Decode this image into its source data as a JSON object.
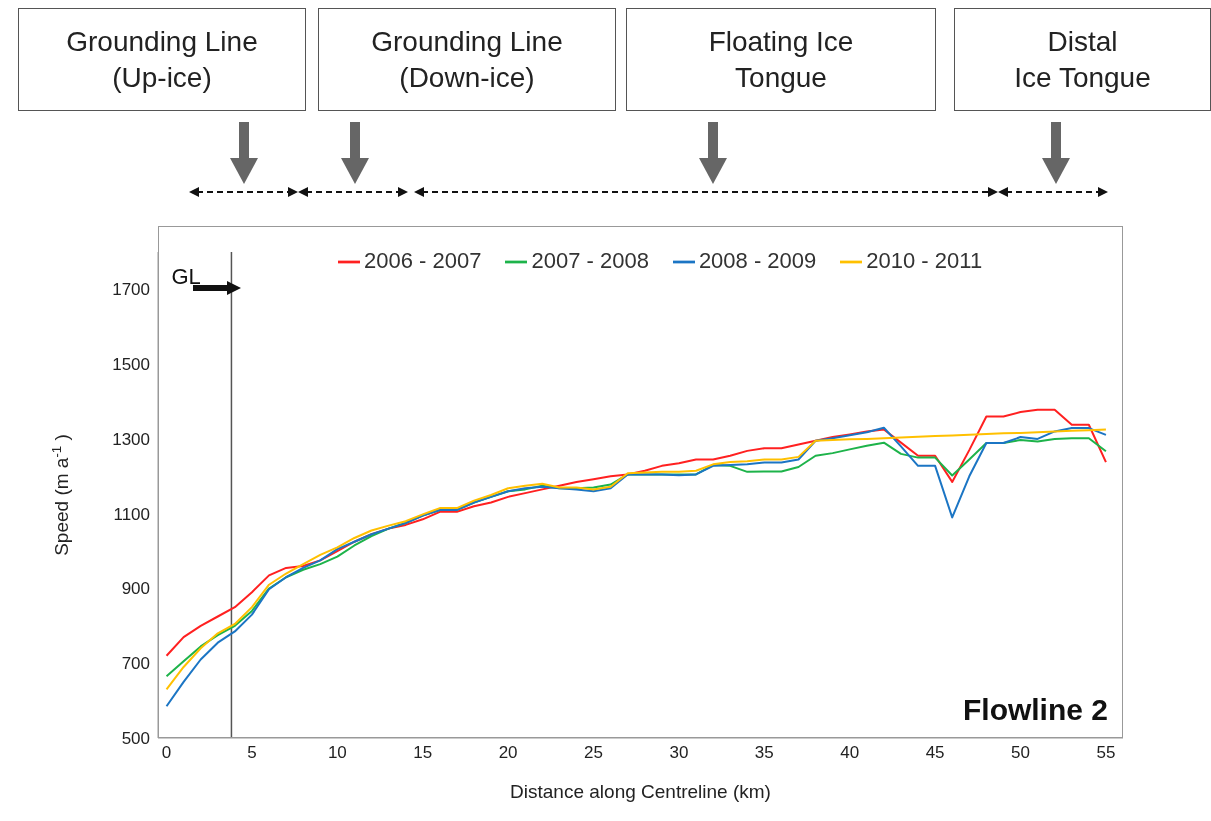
{
  "chart_data": {
    "type": "line",
    "xlabel": "Distance along Centreline (km)",
    "ylabel": "Speed (m a$^{-1}$ )",
    "x": [
      0,
      1,
      2,
      3,
      4,
      5,
      6,
      7,
      8,
      9,
      10,
      11,
      12,
      13,
      14,
      15,
      16,
      17,
      18,
      19,
      20,
      21,
      22,
      23,
      24,
      25,
      26,
      27,
      28,
      29,
      30,
      31,
      32,
      33,
      34,
      35,
      36,
      37,
      38,
      39,
      40,
      41,
      42,
      43,
      44,
      45,
      46,
      47,
      48,
      49,
      50,
      51,
      52,
      53,
      54,
      55
    ],
    "series": [
      {
        "name": "2006 - 2007",
        "color": "#ff2020",
        "values": [
          720,
          770,
          800,
          825,
          850,
          890,
          935,
          955,
          960,
          975,
          1000,
          1025,
          1045,
          1060,
          1070,
          1085,
          1105,
          1105,
          1120,
          1130,
          1145,
          1155,
          1165,
          1175,
          1185,
          1192,
          1200,
          1205,
          1215,
          1228,
          1235,
          1245,
          1245,
          1255,
          1268,
          1275,
          1275,
          1285,
          1295,
          1305,
          1312,
          1320,
          1325,
          1290,
          1255,
          1255,
          1185,
          1270,
          1360,
          1360,
          1372,
          1378,
          1378,
          1338,
          1338,
          1238
        ]
      },
      {
        "name": "2007 - 2008",
        "color": "#1db34a",
        "values": [
          665,
          705,
          745,
          775,
          800,
          840,
          900,
          930,
          950,
          965,
          985,
          1015,
          1040,
          1060,
          1075,
          1095,
          1110,
          1110,
          1130,
          1145,
          1160,
          1165,
          1175,
          1168,
          1168,
          1170,
          1178,
          1205,
          1205,
          1205,
          1205,
          1205,
          1230,
          1228,
          1212,
          1213,
          1213,
          1225,
          1255,
          1262,
          1272,
          1282,
          1290,
          1260,
          1250,
          1250,
          1202,
          1245,
          1289,
          1289,
          1297,
          1293,
          1300,
          1302,
          1302,
          1267
        ]
      },
      {
        "name": "2008 - 2009",
        "color": "#1b75c4",
        "values": [
          585,
          650,
          710,
          755,
          785,
          830,
          898,
          930,
          955,
          975,
          1005,
          1025,
          1045,
          1060,
          1075,
          1095,
          1110,
          1110,
          1130,
          1145,
          1160,
          1168,
          1172,
          1168,
          1165,
          1160,
          1168,
          1205,
          1205,
          1205,
          1203,
          1205,
          1228,
          1230,
          1232,
          1237,
          1237,
          1245,
          1295,
          1302,
          1310,
          1318,
          1330,
          1280,
          1228,
          1228,
          1090,
          1200,
          1289,
          1289,
          1305,
          1300,
          1320,
          1329,
          1329,
          1311
        ]
      },
      {
        "name": "2010 - 2011",
        "color": "#ffc000",
        "values": [
          630,
          690,
          740,
          780,
          805,
          850,
          910,
          940,
          965,
          990,
          1010,
          1035,
          1055,
          1068,
          1080,
          1098,
          1115,
          1115,
          1135,
          1150,
          1168,
          1175,
          1180,
          1170,
          1170,
          1165,
          1172,
          1208,
          1210,
          1212,
          1212,
          1215,
          1232,
          1238,
          1240,
          1245,
          1245,
          1252,
          1295,
          1297,
          1299,
          1300,
          1302,
          1304,
          1306,
          1308,
          1309,
          1311,
          1313,
          1315,
          1316,
          1318,
          1320,
          1322,
          1323,
          1325
        ]
      }
    ],
    "xlim": [
      -0.5,
      56
    ],
    "xticks": [
      0,
      5,
      10,
      15,
      20,
      25,
      30,
      35,
      40,
      45,
      50,
      55
    ],
    "ylim": [
      500,
      1800
    ],
    "yticks": [
      500,
      700,
      900,
      1100,
      1300,
      1500,
      1700
    ],
    "ref_lines": [
      {
        "axis": "x",
        "value": 3.8,
        "label": "GL",
        "color": "#555555"
      }
    ],
    "annotations": [
      "Grounding Line\n(Up-ice)",
      "Grounding Line\n(Down-ice)",
      "Floating Ice\nTongue",
      "Distal\nIce Tongue",
      "Flowline 2"
    ],
    "grid": false,
    "legend": "top",
    "marker": "none",
    "line_style": "solid"
  }
}
